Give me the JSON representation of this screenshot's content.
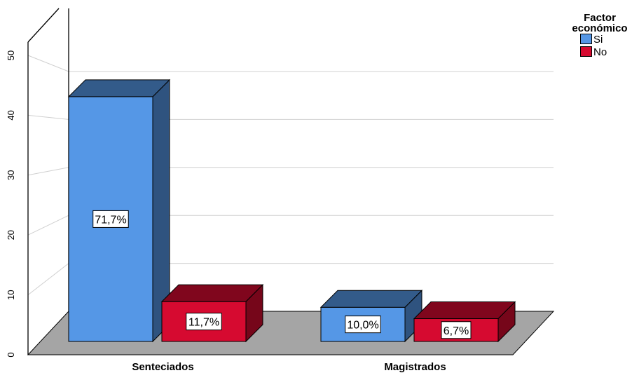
{
  "chart_data": {
    "type": "bar",
    "style": "3d-clustered",
    "categories": [
      "Senteciados",
      "Magistrados"
    ],
    "series": [
      {
        "name": "Si",
        "values": [
          43,
          6
        ],
        "labels": [
          "71,7%",
          "10,0%"
        ],
        "color": "#5597e6"
      },
      {
        "name": "No",
        "values": [
          7,
          4
        ],
        "labels": [
          "11,7%",
          "6,7%"
        ],
        "color": "#d60a30"
      }
    ],
    "ylim": [
      0,
      50
    ],
    "yticks": [
      0,
      10,
      20,
      30,
      40,
      50
    ],
    "grid": true,
    "legend": {
      "title": "Factor económico",
      "position": "top-right"
    }
  }
}
